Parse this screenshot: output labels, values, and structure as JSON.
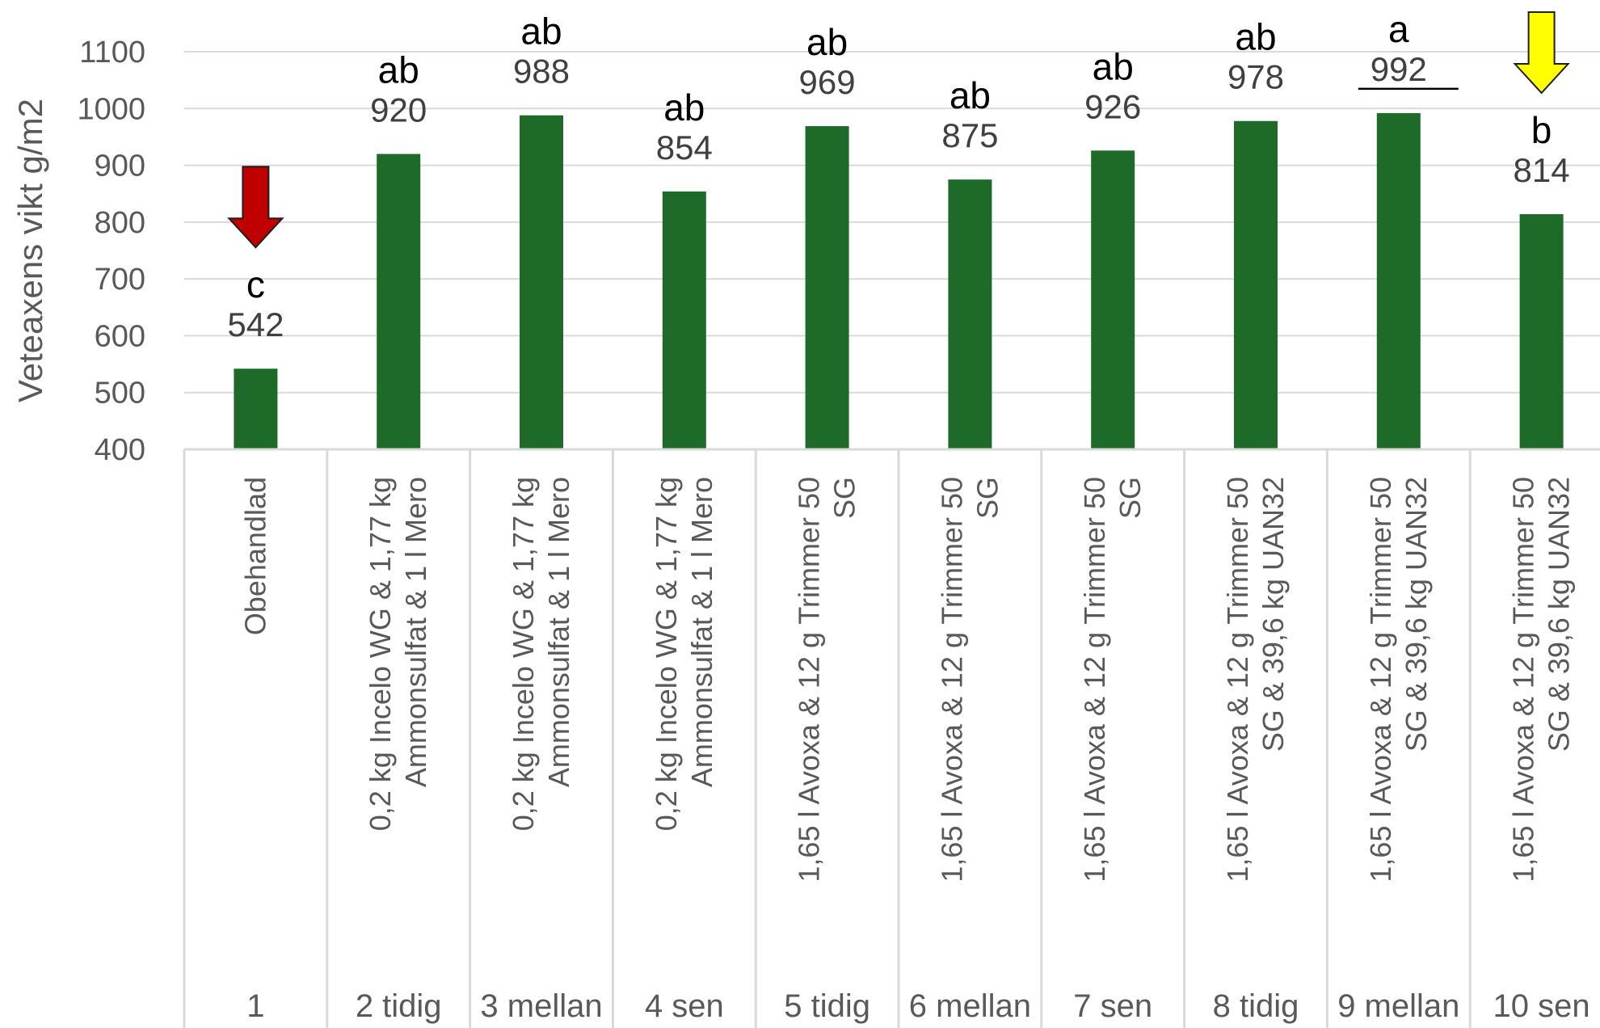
{
  "chart_data": {
    "type": "bar",
    "title": "",
    "xlabel": "",
    "ylabel": "Veteaxens vikt g/m2",
    "ylim": [
      400,
      1100
    ],
    "yticks": [
      400,
      500,
      600,
      700,
      800,
      900,
      1000,
      1100
    ],
    "grid": true,
    "bar_color": "#1e6b29",
    "categories": [
      {
        "level": "1",
        "lines": [
          "Obehandlad"
        ]
      },
      {
        "level": "2 tidig",
        "lines": [
          "0,2 kg Incelo WG & 1,77 kg",
          "Ammonsulfat & 1 l Mero"
        ]
      },
      {
        "level": "3 mellan",
        "lines": [
          "0,2 kg Incelo WG & 1,77 kg",
          "Ammonsulfat & 1 l Mero"
        ]
      },
      {
        "level": "4 sen",
        "lines": [
          "0,2 kg Incelo WG & 1,77 kg",
          "Ammonsulfat & 1 l Mero"
        ]
      },
      {
        "level": "5 tidig",
        "lines": [
          "1,65 l Avoxa & 12 g Trimmer 50",
          "SG"
        ]
      },
      {
        "level": "6 mellan",
        "lines": [
          "1,65 l Avoxa & 12 g Trimmer 50",
          "SG"
        ]
      },
      {
        "level": "7 sen",
        "lines": [
          "1,65 l Avoxa & 12 g Trimmer 50",
          "SG"
        ]
      },
      {
        "level": "8 tidig",
        "lines": [
          "1,65 l Avoxa & 12 g Trimmer 50",
          "SG & 39,6 kg UAN32"
        ]
      },
      {
        "level": "9 mellan",
        "lines": [
          "1,65 l Avoxa & 12 g Trimmer 50",
          "SG & 39,6 kg UAN32"
        ]
      },
      {
        "level": "10 sen",
        "lines": [
          "1,65 l Avoxa & 12 g Trimmer 50",
          "SG & 39,6 kg UAN32"
        ]
      }
    ],
    "values": [
      542,
      920,
      988,
      854,
      969,
      875,
      926,
      978,
      992,
      814
    ],
    "data_labels": [
      "542",
      "920",
      "988",
      "854",
      "969",
      "875",
      "926",
      "978",
      "992",
      "814"
    ],
    "significance_groups": [
      "c",
      "ab",
      "ab",
      "ab",
      "ab",
      "ab",
      "ab",
      "ab",
      "a",
      "b"
    ],
    "annotations": [
      {
        "type": "arrow-down",
        "color": "#c00000",
        "category_index": 0
      },
      {
        "type": "underline",
        "color": "#000000",
        "category_index": 8
      },
      {
        "type": "arrow-down",
        "color": "#ffff00",
        "category_index": 9
      }
    ]
  }
}
